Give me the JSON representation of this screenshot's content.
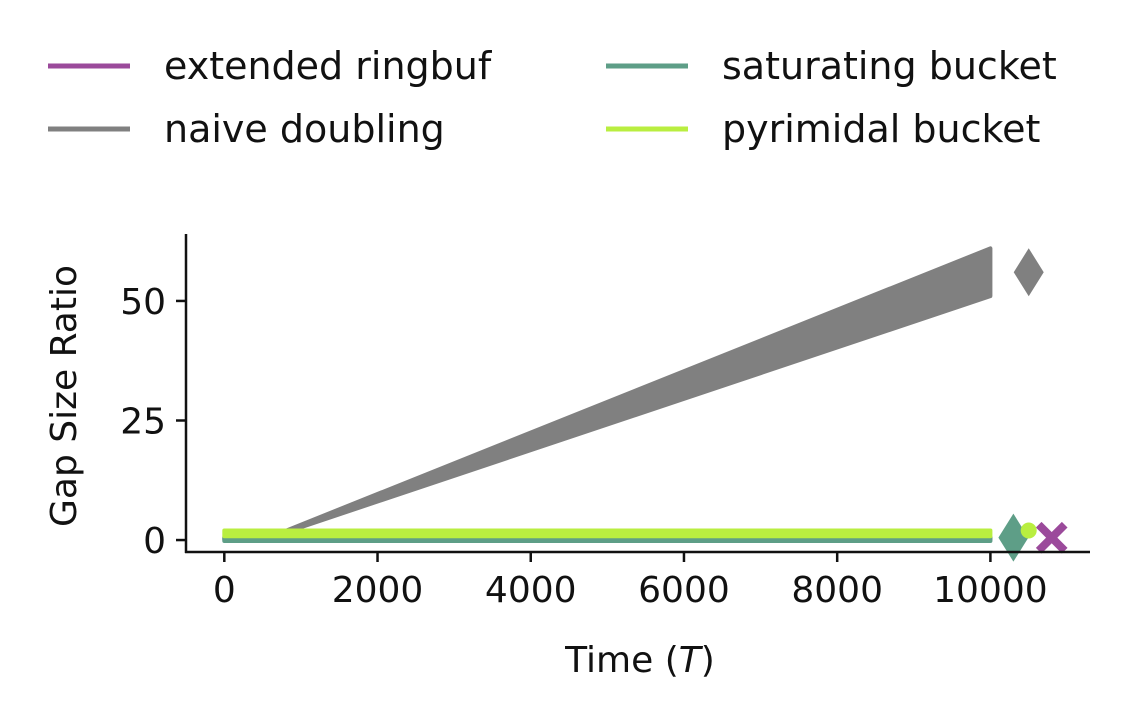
{
  "chart_data": {
    "type": "line",
    "xlabel": "Time",
    "xlabel_var": "T",
    "ylabel": "Gap Size Ratio",
    "xlim": [
      -500,
      11300
    ],
    "ylim": [
      -2.5,
      64
    ],
    "xticks": [
      0,
      2000,
      4000,
      6000,
      8000,
      10000
    ],
    "yticks": [
      0,
      25,
      50
    ],
    "grid": false,
    "legend": {
      "placement": "top, above plot",
      "columns": 2
    },
    "series": [
      {
        "name": "extended ringbuf",
        "color": "#9b4a9b",
        "style": "band",
        "x": [
          0,
          10000
        ],
        "lower": [
          0.1,
          0.1
        ],
        "upper": [
          0.4,
          0.4
        ],
        "endpoint_marker": {
          "shape": "x",
          "x": 10800,
          "y": 0.5
        }
      },
      {
        "name": "naive doubling",
        "color": "#808080",
        "style": "band",
        "x": [
          500,
          10000
        ],
        "lower": [
          0,
          51
        ],
        "upper": [
          0,
          61
        ],
        "endpoint_marker": {
          "shape": "diamond",
          "x": 10500,
          "y": 56
        }
      },
      {
        "name": "saturating bucket",
        "color": "#5e9e87",
        "style": "band",
        "x": [
          0,
          10000
        ],
        "lower": [
          -0.2,
          -0.2
        ],
        "upper": [
          0.6,
          0.6
        ],
        "endpoint_marker": {
          "shape": "diamond",
          "x": 10300,
          "y": 0.5
        }
      },
      {
        "name": "pyrimidal bucket",
        "color": "#b9ee40",
        "style": "band",
        "x": [
          0,
          10000
        ],
        "lower": [
          0.8,
          0.8
        ],
        "upper": [
          2.0,
          2.0
        ],
        "endpoint_marker": {
          "shape": "circle",
          "x": 10500,
          "y": 2.0
        }
      }
    ]
  }
}
